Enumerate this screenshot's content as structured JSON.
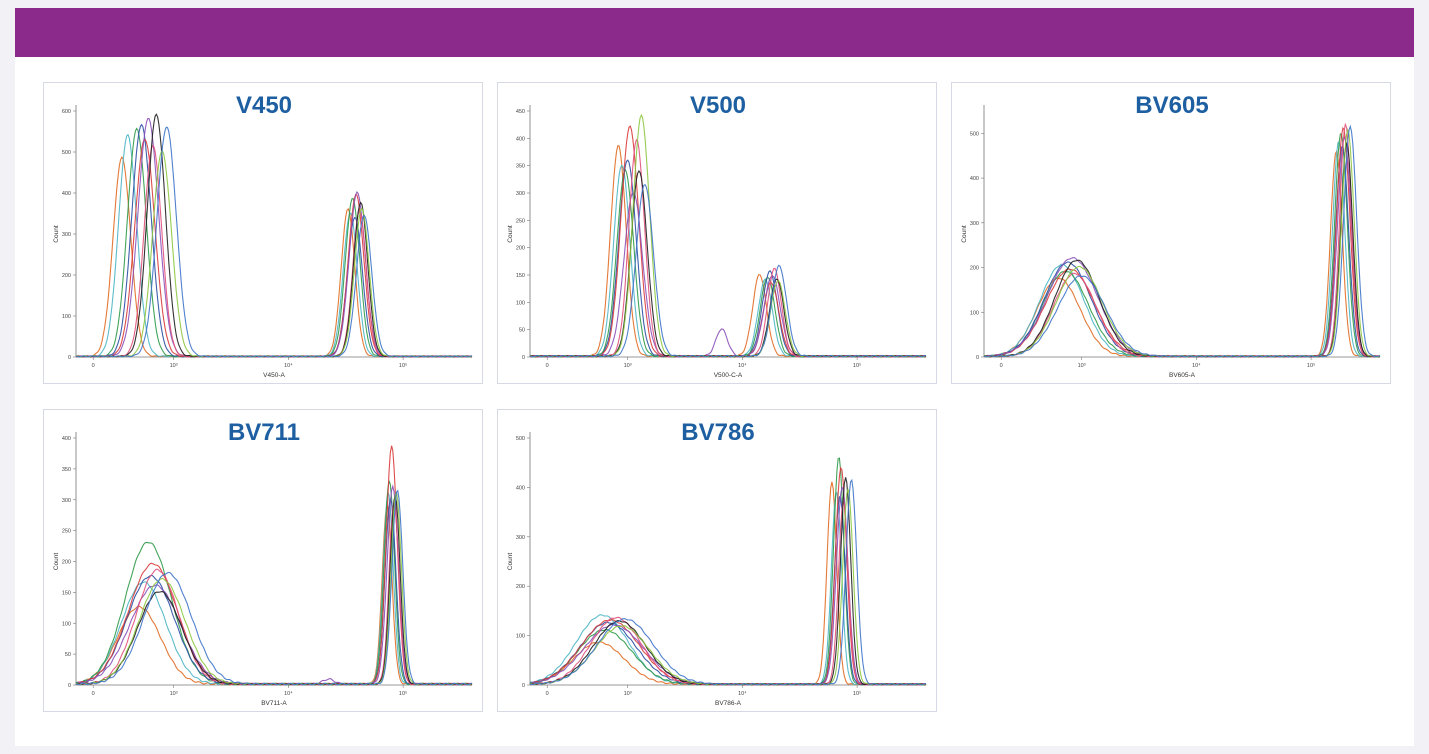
{
  "chart_data": [
    {
      "type": "line",
      "title": "V450",
      "xlabel": "V450-A",
      "ylabel": "Count",
      "x_scale": "log (biexponential)",
      "ylim": [
        0,
        600
      ],
      "yticks": [
        "0",
        "100",
        "200",
        "300",
        "400",
        "500",
        "600"
      ],
      "xticks": [
        "0",
        "10³",
        "10⁴",
        "10⁵"
      ],
      "peaks": [
        {
          "location": "low",
          "positions": [
            2.55,
            2.6,
            2.68,
            2.72,
            2.75,
            2.78,
            2.82,
            2.85,
            2.9,
            2.94
          ],
          "heights": [
            485,
            540,
            555,
            565,
            530,
            580,
            515,
            590,
            500,
            560
          ],
          "width": 0.09
        },
        {
          "location": "high",
          "positions": [
            4.52,
            4.54,
            4.56,
            4.58,
            4.59,
            4.6,
            4.62,
            4.63,
            4.64,
            4.66
          ],
          "heights": [
            360,
            350,
            385,
            340,
            395,
            400,
            355,
            375,
            360,
            345
          ],
          "width": 0.07
        }
      ],
      "series_colors": [
        "#e06b22",
        "#4bb5c4",
        "#2d9a48",
        "#2a4fa3",
        "#d93a3a",
        "#8a4fb8",
        "#e0507a",
        "#1d1d1d",
        "#8cc63f",
        "#3d73c9"
      ]
    },
    {
      "type": "line",
      "title": "V500",
      "xlabel": "V500-C-A",
      "ylabel": "Count",
      "x_scale": "log (biexponential)",
      "ylim": [
        0,
        450
      ],
      "yticks": [
        "0",
        "50",
        "100",
        "150",
        "200",
        "250",
        "300",
        "350",
        "400",
        "450"
      ],
      "xticks": [
        "0",
        "10³",
        "10⁴",
        "10⁵"
      ],
      "peaks": [
        {
          "location": "low",
          "positions": [
            2.92,
            2.95,
            2.98,
            3.0,
            3.02,
            3.05,
            3.08,
            3.1,
            3.12,
            3.15
          ],
          "heights": [
            385,
            350,
            340,
            360,
            420,
            300,
            395,
            340,
            440,
            315
          ],
          "width": 0.08
        },
        {
          "location": "high",
          "positions": [
            4.15,
            4.2,
            4.22,
            4.24,
            4.25,
            4.26,
            4.28,
            4.3,
            4.31,
            4.32
          ],
          "heights": [
            150,
            140,
            145,
            155,
            135,
            148,
            160,
            142,
            138,
            165
          ],
          "width": 0.07
        },
        {
          "location": "minor",
          "positions": [
            3.82
          ],
          "heights": [
            50
          ],
          "width": 0.05
        }
      ],
      "series_colors": [
        "#e06b22",
        "#4bb5c4",
        "#2d9a48",
        "#2a4fa3",
        "#d93a3a",
        "#8a4fb8",
        "#e0507a",
        "#1d1d1d",
        "#8cc63f",
        "#3d73c9"
      ]
    },
    {
      "type": "line",
      "title": "BV605",
      "xlabel": "BV605-A",
      "ylabel": "Count",
      "x_scale": "log (biexponential)",
      "ylim": [
        0,
        550
      ],
      "yticks": [
        "0",
        "100",
        "200",
        "300",
        "400",
        "500"
      ],
      "xticks": [
        "0",
        "10³",
        "10⁴",
        "10⁵"
      ],
      "peaks": [
        {
          "location": "low",
          "positions": [
            2.8,
            2.83,
            2.86,
            2.88,
            2.9,
            2.92,
            2.94,
            2.96,
            2.98,
            3.0
          ],
          "heights": [
            175,
            205,
            190,
            210,
            195,
            220,
            185,
            215,
            200,
            180
          ],
          "width": 0.22
        },
        {
          "location": "high",
          "positions": [
            5.22,
            5.24,
            5.26,
            5.27,
            5.28,
            5.29,
            5.3,
            5.31,
            5.32,
            5.34
          ],
          "heights": [
            460,
            480,
            500,
            470,
            510,
            490,
            520,
            475,
            505,
            515
          ],
          "width": 0.06
        }
      ],
      "series_colors": [
        "#e06b22",
        "#4bb5c4",
        "#2d9a48",
        "#2a4fa3",
        "#d93a3a",
        "#8a4fb8",
        "#e0507a",
        "#1d1d1d",
        "#8cc63f",
        "#3d73c9"
      ]
    },
    {
      "type": "line",
      "title": "BV711",
      "xlabel": "BV711-A",
      "ylabel": "Count",
      "x_scale": "log (biexponential)",
      "ylim": [
        0,
        400
      ],
      "yticks": [
        "0",
        "50",
        "100",
        "150",
        "200",
        "250",
        "300",
        "350",
        "400"
      ],
      "xticks": [
        "0",
        "10³",
        "10⁴",
        "10⁵"
      ],
      "peaks": [
        {
          "location": "low",
          "positions": [
            2.7,
            2.74,
            2.78,
            2.8,
            2.82,
            2.84,
            2.86,
            2.88,
            2.9,
            2.95
          ],
          "heights": [
            125,
            165,
            230,
            175,
            195,
            160,
            185,
            150,
            170,
            180
          ],
          "width": 0.22
        },
        {
          "location": "high",
          "positions": [
            4.86,
            4.87,
            4.88,
            4.89,
            4.9,
            4.91,
            4.92,
            4.93,
            4.94,
            4.95
          ],
          "heights": [
            290,
            310,
            330,
            300,
            385,
            320,
            295,
            305,
            310,
            315
          ],
          "width": 0.05
        },
        {
          "location": "minor",
          "positions": [
            4.35
          ],
          "heights": [
            8
          ],
          "width": 0.05
        }
      ],
      "series_colors": [
        "#e06b22",
        "#4bb5c4",
        "#2d9a48",
        "#2a4fa3",
        "#d93a3a",
        "#8a4fb8",
        "#e0507a",
        "#1d1d1d",
        "#8cc63f",
        "#3d73c9"
      ]
    },
    {
      "type": "line",
      "title": "BV786",
      "xlabel": "BV786-A",
      "ylabel": "Count",
      "x_scale": "log (biexponential)",
      "ylim": [
        0,
        500
      ],
      "yticks": [
        "0",
        "100",
        "200",
        "300",
        "400",
        "500"
      ],
      "xticks": [
        "0",
        "10³",
        "10⁴",
        "10⁵"
      ],
      "peaks": [
        {
          "location": "low",
          "positions": [
            2.75,
            2.78,
            2.8,
            2.83,
            2.85,
            2.88,
            2.9,
            2.93,
            2.95,
            2.98
          ],
          "heights": [
            85,
            140,
            110,
            125,
            130,
            120,
            135,
            128,
            118,
            132
          ],
          "width": 0.26
        },
        {
          "location": "high",
          "positions": [
            4.78,
            4.82,
            4.84,
            4.85,
            4.86,
            4.87,
            4.88,
            4.9,
            4.92,
            4.95
          ],
          "heights": [
            410,
            390,
            460,
            380,
            440,
            400,
            370,
            420,
            395,
            415
          ],
          "width": 0.05
        }
      ],
      "series_colors": [
        "#e06b22",
        "#4bb5c4",
        "#2d9a48",
        "#2a4fa3",
        "#d93a3a",
        "#8a4fb8",
        "#e0507a",
        "#1d1d1d",
        "#8cc63f",
        "#3d73c9"
      ]
    }
  ]
}
